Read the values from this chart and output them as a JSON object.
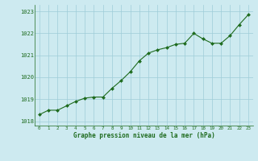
{
  "x": [
    0,
    1,
    2,
    3,
    4,
    5,
    6,
    7,
    8,
    9,
    10,
    11,
    12,
    13,
    14,
    15,
    16,
    17,
    18,
    19,
    20,
    21,
    22,
    23
  ],
  "y": [
    1018.3,
    1018.5,
    1018.5,
    1018.7,
    1018.9,
    1019.05,
    1019.1,
    1019.1,
    1019.5,
    1019.85,
    1020.25,
    1020.75,
    1021.1,
    1021.25,
    1021.35,
    1021.5,
    1021.55,
    1022.0,
    1021.75,
    1021.55,
    1021.55,
    1021.9,
    1022.4,
    1022.85
  ],
  "line_color": "#1e6b1e",
  "marker_color": "#1e6b1e",
  "bg_color": "#cdeaf0",
  "grid_color": "#9ecdd8",
  "xlabel": "Graphe pression niveau de la mer (hPa)",
  "xlabel_color": "#1e6b1e",
  "tick_color": "#1e6b1e",
  "ylim": [
    1017.8,
    1023.3
  ],
  "yticks": [
    1018,
    1019,
    1020,
    1021,
    1022,
    1023
  ],
  "xticks": [
    0,
    1,
    2,
    3,
    4,
    5,
    6,
    7,
    8,
    9,
    10,
    11,
    12,
    13,
    14,
    15,
    16,
    17,
    18,
    19,
    20,
    21,
    22,
    23
  ],
  "font_family": "monospace"
}
